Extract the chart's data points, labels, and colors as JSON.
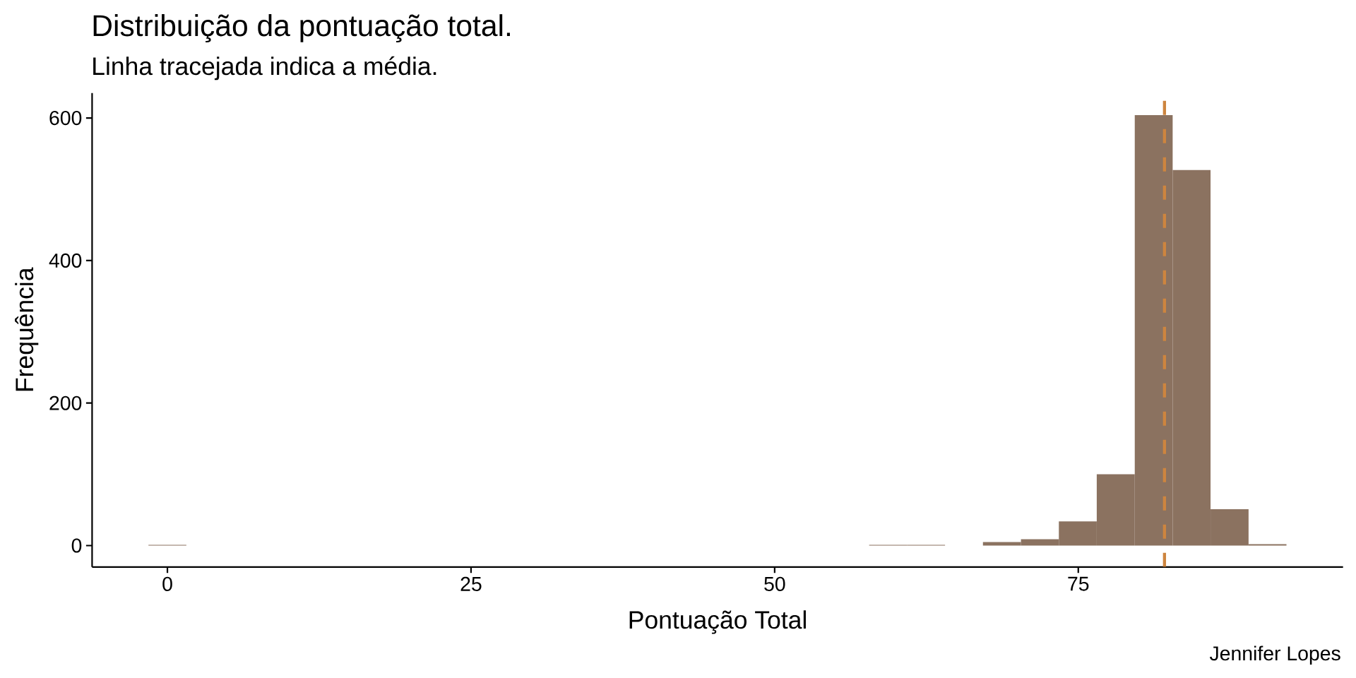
{
  "chart_data": {
    "type": "histogram",
    "title": "Distribuição da pontuação total.",
    "subtitle": "Linha tracejada indica a média.",
    "xlabel": "Pontuação Total",
    "ylabel": "Frequência",
    "bins": [
      -1.56,
      1.56,
      4.69,
      7.81,
      10.93,
      14.06,
      17.18,
      20.3,
      23.43,
      26.55,
      29.67,
      32.8,
      35.92,
      39.04,
      42.17,
      45.29,
      48.41,
      51.54,
      54.66,
      57.78,
      60.91,
      64.03,
      67.15,
      70.28,
      73.4,
      76.52,
      79.65,
      82.77,
      85.89,
      89.02,
      92.14
    ],
    "values": [
      1,
      0,
      0,
      0,
      0,
      0,
      0,
      0,
      0,
      0,
      0,
      0,
      0,
      0,
      0,
      0,
      0,
      0,
      0,
      1,
      1,
      0,
      5,
      9,
      34,
      100,
      604,
      527,
      51,
      2
    ],
    "color": "#8b7260",
    "xlim": [
      -6.2,
      96.8
    ],
    "ylim": [
      -30,
      635
    ],
    "xticks": [
      0,
      25,
      50,
      75
    ],
    "yticks": [
      0,
      200,
      400,
      600
    ],
    "ref_lines": [
      {
        "axis": "x",
        "value": 82.1,
        "color": "#cd853f",
        "line_style": "dashed"
      }
    ],
    "annotations": [
      "Jennifer Lopes"
    ]
  }
}
